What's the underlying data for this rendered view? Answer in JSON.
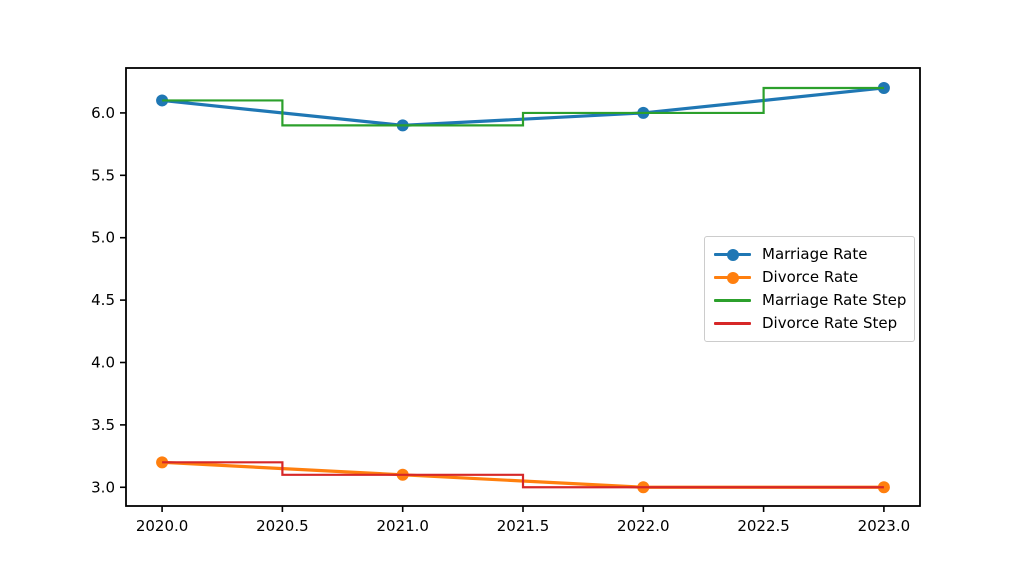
{
  "figure": {
    "background_color": "#ffffff",
    "spine_color": "#000000",
    "tick_color": "#000000",
    "tick_label_color": "#000000",
    "legend_border_color": "#cccccc"
  },
  "chart_data": {
    "type": "line",
    "title": "",
    "xlabel": "",
    "ylabel": "",
    "x": [
      2020.0,
      2021.0,
      2022.0,
      2023.0
    ],
    "series": [
      {
        "name": "Marriage Rate",
        "values": [
          6.1,
          5.9,
          6.0,
          6.2
        ],
        "color": "#1f77b4",
        "style": "line-marker",
        "line_width": 3.2
      },
      {
        "name": "Divorce Rate",
        "values": [
          3.2,
          3.1,
          3.0,
          3.0
        ],
        "color": "#ff7f0e",
        "style": "line-marker",
        "line_width": 3.2
      },
      {
        "name": "Marriage Rate Step",
        "values": [
          6.1,
          5.9,
          6.0,
          6.2
        ],
        "color": "#2ca02c",
        "style": "step-mid",
        "line_width": 2.2
      },
      {
        "name": "Divorce Rate Step",
        "values": [
          3.2,
          3.1,
          3.0,
          3.0
        ],
        "color": "#d62728",
        "style": "step-mid",
        "line_width": 2.2
      }
    ],
    "xlim": [
      2019.85,
      2023.15
    ],
    "ylim": [
      2.85,
      6.36
    ],
    "x_tick_values": [
      2020.0,
      2020.5,
      2021.0,
      2021.5,
      2022.0,
      2022.5,
      2023.0
    ],
    "x_tick_labels": [
      "2020.0",
      "2020.5",
      "2021.0",
      "2021.5",
      "2022.0",
      "2022.5",
      "2023.0"
    ],
    "y_tick_values": [
      3.0,
      3.5,
      4.0,
      4.5,
      5.0,
      5.5,
      6.0
    ],
    "y_tick_labels": [
      "3.0",
      "3.5",
      "4.0",
      "4.5",
      "5.0",
      "5.5",
      "6.0"
    ],
    "grid": false,
    "legend_position": "center right",
    "marker": "circle",
    "marker_radius": 6
  }
}
